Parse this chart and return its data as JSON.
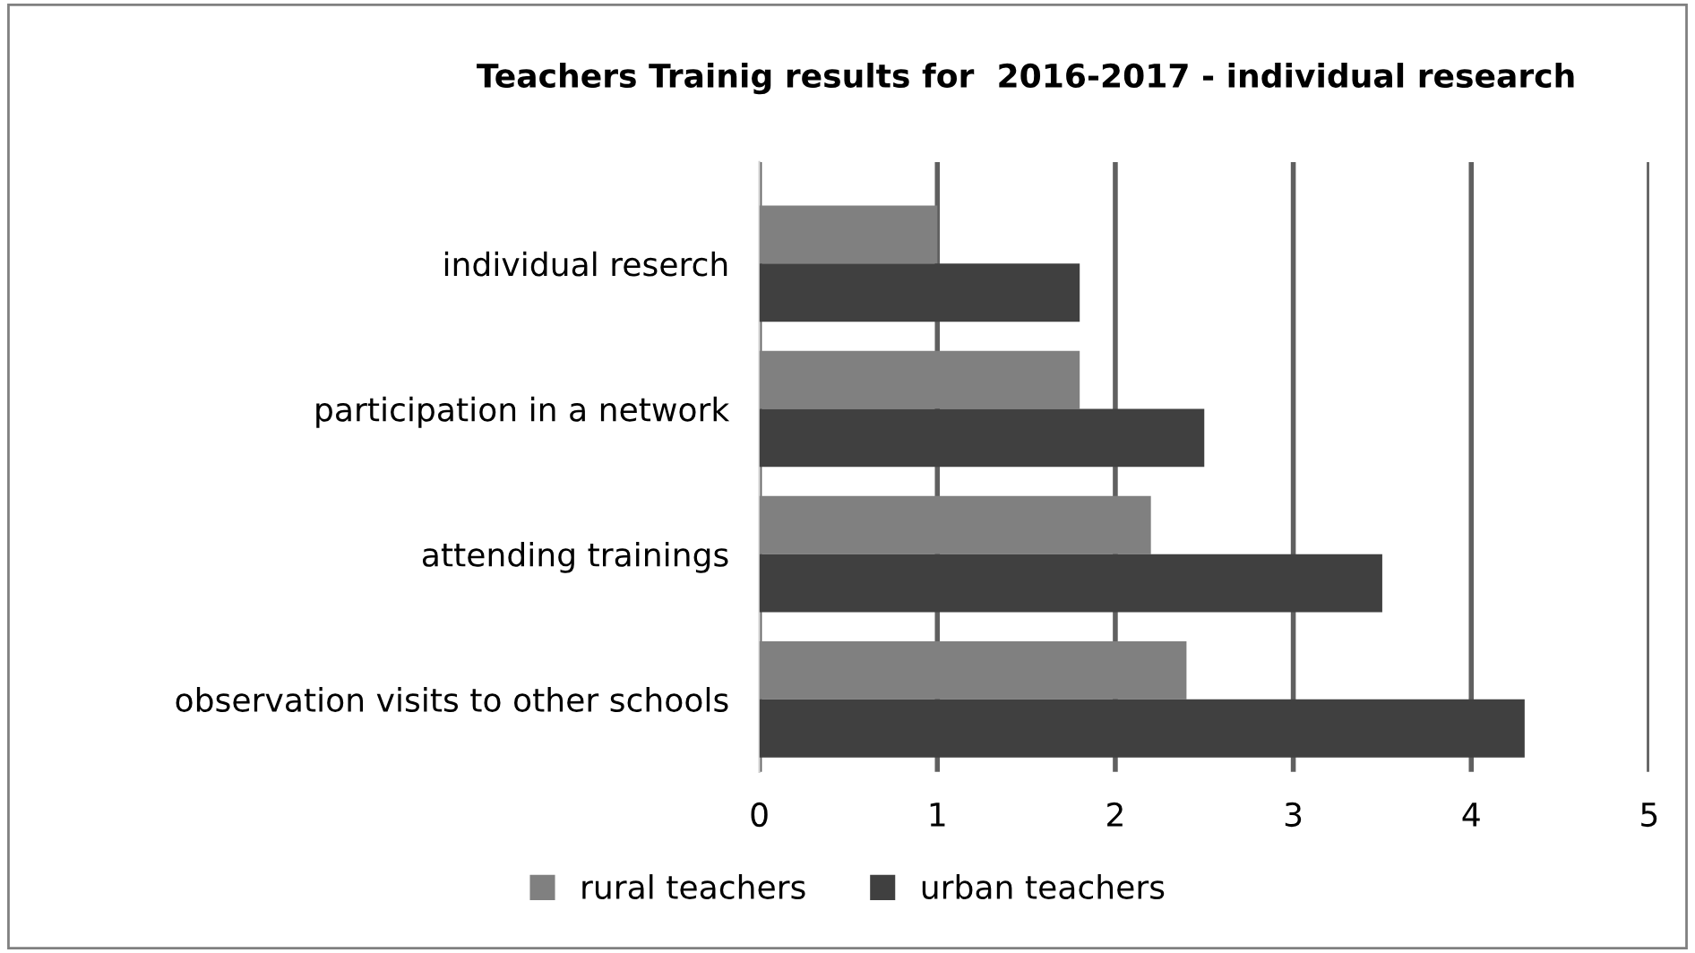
{
  "chart_data": {
    "type": "bar",
    "orientation": "horizontal",
    "title": "Teachers Trainig results for  2016-2017 - individual research",
    "categories": [
      "individual reserch",
      "participation in a network",
      "attending trainings",
      "observation visits to other schools"
    ],
    "series": [
      {
        "name": "rural teachers",
        "color": "#808080",
        "values": [
          1,
          1.8,
          2.2,
          2.4
        ]
      },
      {
        "name": "urban teachers",
        "color": "#404040",
        "values": [
          1.8,
          2.5,
          3.5,
          4.3
        ]
      }
    ],
    "xlim": [
      0,
      5
    ],
    "xticks": [
      0,
      1,
      2,
      3,
      4,
      5
    ],
    "grid": "x",
    "legend": "bottom"
  }
}
